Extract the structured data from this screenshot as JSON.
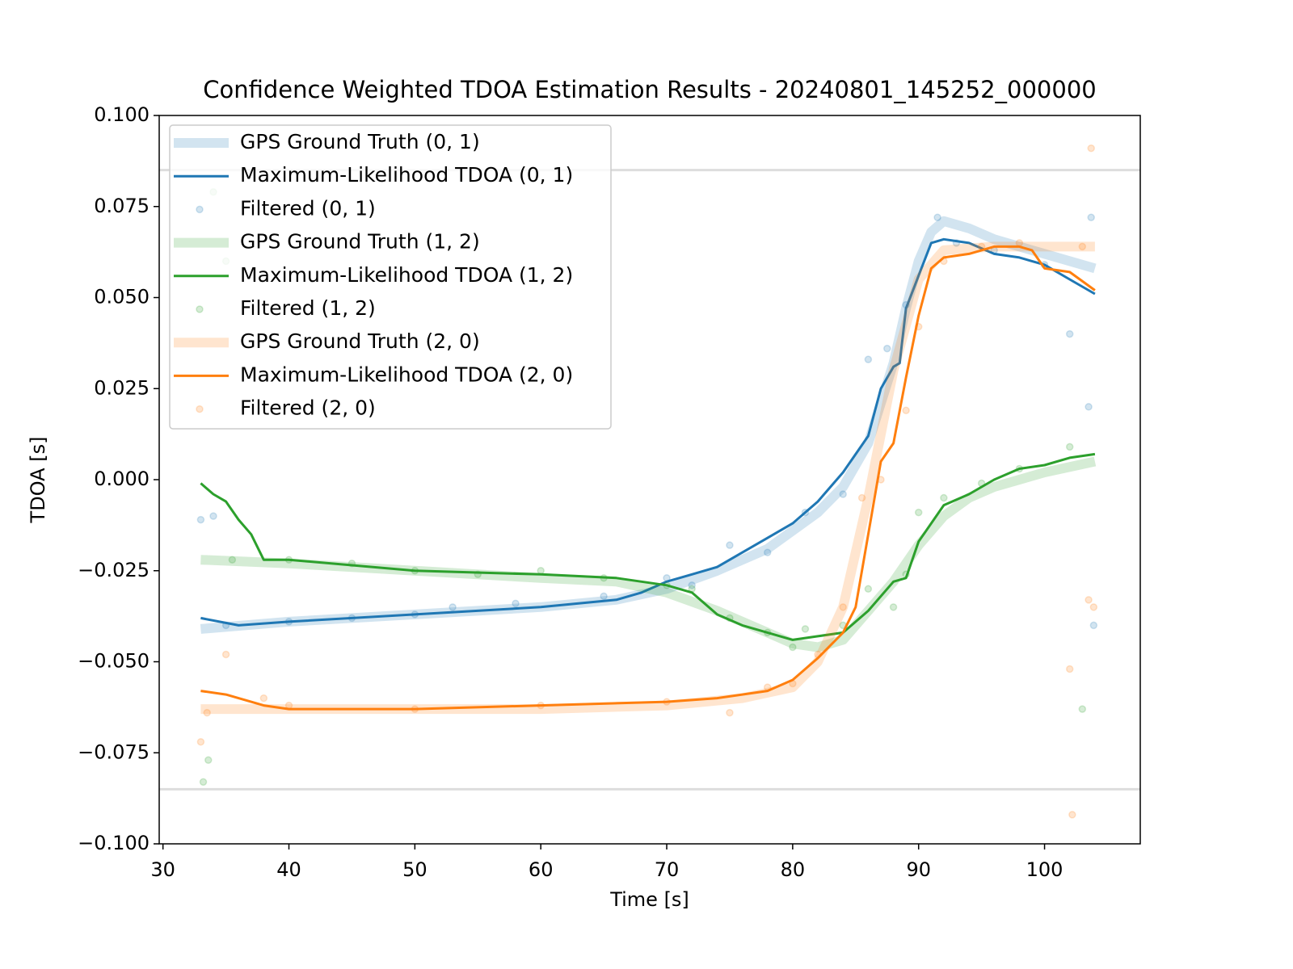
{
  "chart_data": {
    "type": "line",
    "title": "Confidence Weighted TDOA Estimation Results - 20240801_145252_000000",
    "x_label": "Time [s]",
    "y_label": "TDOA [s]",
    "xlim": [
      29.7,
      107.6
    ],
    "ylim": [
      -0.1,
      0.1
    ],
    "xticks": [
      30,
      40,
      50,
      60,
      70,
      80,
      90,
      100
    ],
    "yticks": [
      {
        "value": -0.1,
        "label": "−0.100"
      },
      {
        "value": -0.075,
        "label": "−0.075"
      },
      {
        "value": -0.05,
        "label": "−0.050"
      },
      {
        "value": -0.025,
        "label": "−0.025"
      },
      {
        "value": 0,
        "label": "0.000"
      },
      {
        "value": 0.025,
        "label": "0.025"
      },
      {
        "value": 0.05,
        "label": "0.050"
      },
      {
        "value": 0.075,
        "label": "0.075"
      },
      {
        "value": 0.1,
        "label": "0.100"
      }
    ],
    "hlines": [
      0.085,
      -0.085
    ],
    "hline_color": "#dddddd",
    "grid": false,
    "legend": "upper left",
    "series": [
      {
        "name": "GPS Ground Truth (0, 1)",
        "kind": "ground-truth",
        "color": "#1f77b4",
        "alpha": 0.2,
        "x": [
          33,
          40,
          50,
          60,
          66,
          70,
          74,
          78,
          80,
          82,
          84,
          86,
          88,
          89,
          90,
          91,
          92,
          94,
          96,
          98,
          100,
          102,
          104
        ],
        "values": [
          -0.041,
          -0.039,
          -0.037,
          -0.035,
          -0.033,
          -0.03,
          -0.025,
          -0.019,
          -0.014,
          -0.009,
          -0.002,
          0.01,
          0.032,
          0.047,
          0.06,
          0.068,
          0.071,
          0.069,
          0.066,
          0.064,
          0.062,
          0.06,
          0.058
        ]
      },
      {
        "name": "Maximum-Likelihood TDOA (0, 1)",
        "kind": "line",
        "color": "#1f77b4",
        "alpha": 1,
        "x": [
          33,
          36,
          40,
          50,
          60,
          66,
          68,
          70,
          72,
          74,
          76,
          78,
          80,
          82,
          84,
          86,
          87,
          88,
          88.5,
          89,
          90,
          91,
          92,
          94,
          96,
          98,
          100,
          102,
          104
        ],
        "values": [
          -0.038,
          -0.04,
          -0.039,
          -0.037,
          -0.035,
          -0.033,
          -0.031,
          -0.028,
          -0.026,
          -0.024,
          -0.02,
          -0.016,
          -0.012,
          -0.006,
          0.002,
          0.012,
          0.025,
          0.031,
          0.032,
          0.047,
          0.056,
          0.065,
          0.066,
          0.065,
          0.062,
          0.061,
          0.059,
          0.055,
          0.051
        ]
      },
      {
        "name": "Filtered (0, 1)",
        "kind": "scatter",
        "color": "#1f77b4",
        "alpha": 0.2,
        "x": [
          33,
          34,
          35,
          40,
          45,
          50,
          53,
          58,
          65,
          70,
          72,
          75,
          78,
          81,
          84,
          86,
          87.5,
          89,
          91.5,
          93,
          96,
          100,
          102,
          103.5,
          103.7,
          103.9
        ],
        "values": [
          -0.011,
          -0.01,
          -0.04,
          -0.039,
          -0.038,
          -0.037,
          -0.035,
          -0.034,
          -0.032,
          -0.027,
          -0.029,
          -0.018,
          -0.02,
          -0.009,
          -0.004,
          0.033,
          0.036,
          0.048,
          0.072,
          0.065,
          0.063,
          0.059,
          0.04,
          0.02,
          0.072,
          -0.04
        ]
      },
      {
        "name": "GPS Ground Truth (1, 2)",
        "kind": "ground-truth",
        "color": "#2ca02c",
        "alpha": 0.2,
        "x": [
          33,
          40,
          50,
          60,
          66,
          70,
          74,
          78,
          80,
          82,
          84,
          86,
          88,
          90,
          92,
          94,
          96,
          100,
          104
        ],
        "values": [
          -0.022,
          -0.023,
          -0.025,
          -0.027,
          -0.028,
          -0.031,
          -0.036,
          -0.042,
          -0.045,
          -0.046,
          -0.044,
          -0.036,
          -0.028,
          -0.018,
          -0.01,
          -0.005,
          -0.002,
          0.002,
          0.005
        ]
      },
      {
        "name": "Maximum-Likelihood TDOA (1, 2)",
        "kind": "line",
        "color": "#2ca02c",
        "alpha": 1,
        "x": [
          33,
          34,
          35,
          36,
          37,
          38,
          40,
          50,
          60,
          66,
          68,
          70,
          72,
          74,
          76,
          78,
          80,
          82,
          84,
          86,
          88,
          89,
          90,
          92,
          94,
          96,
          98,
          100,
          102,
          104
        ],
        "values": [
          -0.001,
          -0.004,
          -0.006,
          -0.011,
          -0.015,
          -0.022,
          -0.022,
          -0.025,
          -0.026,
          -0.027,
          -0.028,
          -0.029,
          -0.031,
          -0.037,
          -0.04,
          -0.042,
          -0.044,
          -0.043,
          -0.042,
          -0.036,
          -0.028,
          -0.027,
          -0.017,
          -0.007,
          -0.004,
          0.0,
          0.003,
          0.004,
          0.006,
          0.007
        ]
      },
      {
        "name": "Filtered (1, 2)",
        "kind": "scatter",
        "color": "#2ca02c",
        "alpha": 0.2,
        "x": [
          33.2,
          33.6,
          34,
          35,
          35.5,
          40,
          45,
          50,
          55,
          60,
          65,
          70,
          72,
          75,
          78,
          80,
          81,
          84,
          86,
          88,
          89,
          90,
          92,
          95,
          98,
          102,
          103
        ],
        "values": [
          -0.083,
          -0.077,
          0.079,
          0.06,
          -0.022,
          -0.022,
          -0.023,
          -0.025,
          -0.026,
          -0.025,
          -0.027,
          -0.029,
          -0.03,
          -0.038,
          -0.042,
          -0.046,
          -0.041,
          -0.04,
          -0.03,
          -0.035,
          -0.026,
          -0.009,
          -0.005,
          -0.001,
          0.003,
          0.009,
          -0.063
        ]
      },
      {
        "name": "GPS Ground Truth (2, 0)",
        "kind": "ground-truth",
        "color": "#ff7f0e",
        "alpha": 0.2,
        "x": [
          33,
          40,
          50,
          60,
          70,
          76,
          80,
          82,
          84,
          86,
          88,
          90,
          92,
          96,
          104
        ],
        "values": [
          -0.063,
          -0.063,
          -0.063,
          -0.063,
          -0.062,
          -0.06,
          -0.057,
          -0.05,
          -0.035,
          -0.005,
          0.03,
          0.055,
          0.063,
          0.064,
          0.064
        ]
      },
      {
        "name": "Maximum-Likelihood TDOA (2, 0)",
        "kind": "line",
        "color": "#ff7f0e",
        "alpha": 1,
        "x": [
          33,
          35,
          38,
          40,
          50,
          60,
          70,
          74,
          78,
          80,
          82,
          84,
          85,
          86,
          87,
          88,
          89,
          90,
          91,
          92,
          94,
          96,
          98,
          99,
          100,
          102,
          104
        ],
        "values": [
          -0.058,
          -0.059,
          -0.062,
          -0.063,
          -0.063,
          -0.062,
          -0.061,
          -0.06,
          -0.058,
          -0.055,
          -0.049,
          -0.042,
          -0.035,
          -0.015,
          0.005,
          0.01,
          0.028,
          0.045,
          0.058,
          0.061,
          0.062,
          0.064,
          0.064,
          0.063,
          0.058,
          0.057,
          0.052
        ]
      },
      {
        "name": "Filtered (2, 0)",
        "kind": "scatter",
        "color": "#ff7f0e",
        "alpha": 0.2,
        "x": [
          33,
          33.5,
          35,
          38,
          40,
          50,
          60,
          70,
          75,
          78,
          80,
          82,
          84,
          85.5,
          87,
          89,
          90,
          92,
          95,
          98,
          102,
          102.2,
          103,
          103.5,
          103.7,
          103.9
        ],
        "values": [
          -0.072,
          -0.064,
          -0.048,
          -0.06,
          -0.062,
          -0.063,
          -0.062,
          -0.061,
          -0.064,
          -0.057,
          -0.056,
          -0.048,
          -0.035,
          -0.005,
          0.0,
          0.019,
          0.042,
          0.06,
          0.064,
          0.065,
          -0.052,
          -0.092,
          0.064,
          -0.033,
          0.091,
          -0.035
        ]
      }
    ]
  }
}
